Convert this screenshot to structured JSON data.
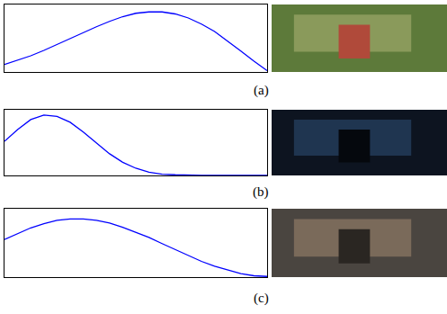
{
  "chart_data": [
    {
      "type": "line",
      "title": "(a)",
      "color": "#0000ff",
      "tick_labels": false,
      "xlim": [
        0,
        1
      ],
      "ylim": [
        0,
        1
      ],
      "x": [
        0,
        0.05,
        0.1,
        0.15,
        0.2,
        0.25,
        0.3,
        0.35,
        0.4,
        0.45,
        0.5,
        0.55,
        0.6,
        0.65,
        0.7,
        0.75,
        0.8,
        0.85,
        0.9,
        0.95,
        1
      ],
      "values": [
        0.11,
        0.17,
        0.24,
        0.32,
        0.41,
        0.5,
        0.59,
        0.67,
        0.75,
        0.82,
        0.87,
        0.89,
        0.89,
        0.86,
        0.8,
        0.71,
        0.6,
        0.46,
        0.31,
        0.16,
        0.02
      ]
    },
    {
      "type": "line",
      "title": "(b)",
      "color": "#0000ff",
      "tick_labels": false,
      "xlim": [
        0,
        1
      ],
      "ylim": [
        0,
        1
      ],
      "x": [
        0,
        0.05,
        0.1,
        0.15,
        0.2,
        0.25,
        0.3,
        0.35,
        0.4,
        0.45,
        0.5,
        0.55,
        0.6,
        0.65,
        0.7,
        0.75,
        0.8,
        0.85,
        0.9,
        0.95,
        1
      ],
      "values": [
        0.52,
        0.7,
        0.85,
        0.92,
        0.9,
        0.81,
        0.66,
        0.49,
        0.33,
        0.2,
        0.11,
        0.05,
        0.02,
        0.01,
        0,
        0,
        0,
        0,
        0,
        0,
        0
      ]
    },
    {
      "type": "line",
      "title": "(c)",
      "color": "#0000ff",
      "tick_labels": false,
      "xlim": [
        0,
        1
      ],
      "ylim": [
        0,
        1
      ],
      "x": [
        0,
        0.05,
        0.1,
        0.15,
        0.2,
        0.25,
        0.3,
        0.35,
        0.4,
        0.45,
        0.5,
        0.55,
        0.6,
        0.65,
        0.7,
        0.75,
        0.8,
        0.85,
        0.9,
        0.95,
        1
      ],
      "values": [
        0.55,
        0.64,
        0.72,
        0.78,
        0.83,
        0.85,
        0.85,
        0.83,
        0.79,
        0.73,
        0.66,
        0.58,
        0.49,
        0.4,
        0.31,
        0.23,
        0.16,
        0.1,
        0.05,
        0.02,
        0.01
      ]
    }
  ]
}
